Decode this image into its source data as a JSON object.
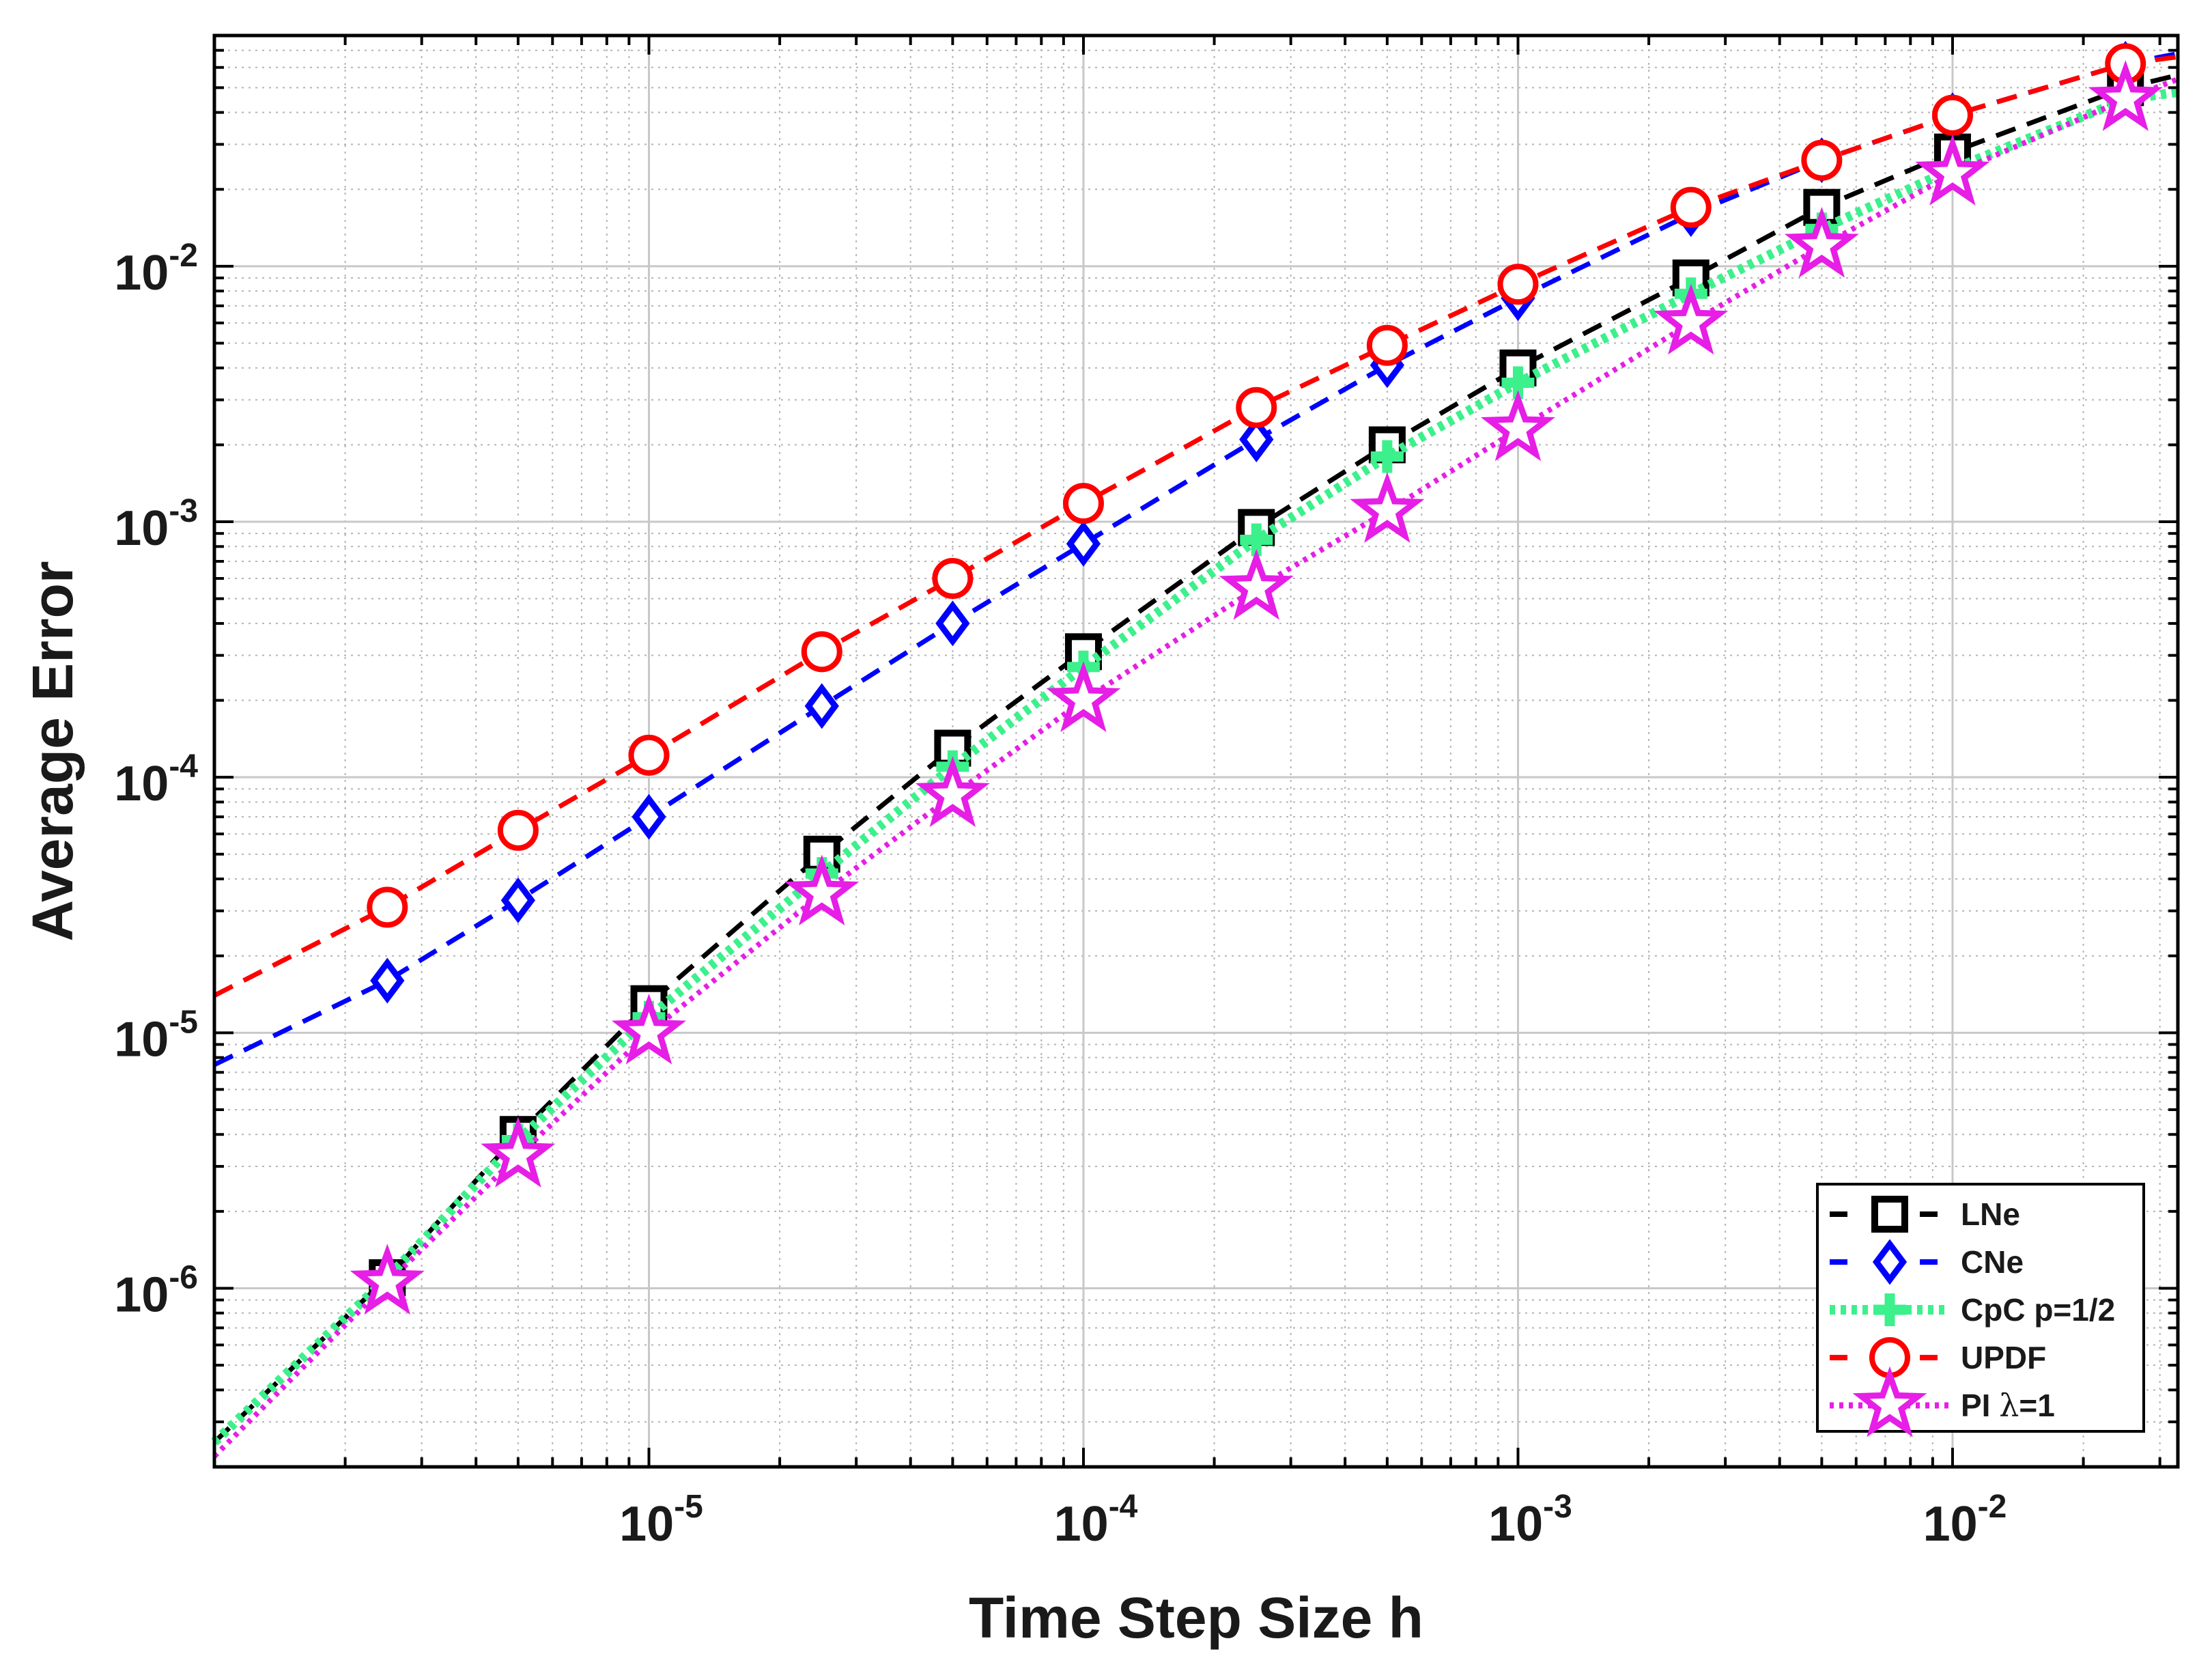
{
  "chart_data": {
    "type": "line",
    "title": "",
    "xlabel": "Time Step Size h",
    "ylabel": "Average Error",
    "xscale": "log",
    "yscale": "log",
    "xlim": [
      1e-06,
      0.033
    ],
    "ylim": [
      2e-07,
      0.08
    ],
    "grid": true,
    "minor_grid": true,
    "legend_position": "bottom-right",
    "x_ticks": [
      {
        "value": 1e-05,
        "base": "10",
        "exp": "-5"
      },
      {
        "value": 0.0001,
        "base": "10",
        "exp": "-4"
      },
      {
        "value": 0.001,
        "base": "10",
        "exp": "-3"
      },
      {
        "value": 0.01,
        "base": "10",
        "exp": "-2"
      }
    ],
    "y_ticks": [
      {
        "value": 1e-06,
        "base": "10",
        "exp": "-6"
      },
      {
        "value": 1e-05,
        "base": "10",
        "exp": "-5"
      },
      {
        "value": 0.0001,
        "base": "10",
        "exp": "-4"
      },
      {
        "value": 0.001,
        "base": "10",
        "exp": "-3"
      },
      {
        "value": 0.01,
        "base": "10",
        "exp": "-2"
      }
    ],
    "x": [
      2.5e-06,
      5e-06,
      1e-05,
      2.5e-05,
      5e-05,
      0.0001,
      0.00025,
      0.0005,
      0.001,
      0.0025,
      0.005,
      0.01,
      0.025
    ],
    "series": [
      {
        "name": "LNe",
        "color": "#000000",
        "dash": "dashed",
        "marker": "square",
        "values": [
          1.1e-06,
          4e-06,
          1.3e-05,
          5e-05,
          0.00013,
          0.00031,
          0.00095,
          0.002,
          0.004,
          0.009,
          0.017,
          0.028,
          0.05
        ],
        "line_start": 2.5e-07,
        "line_end": 0.056
      },
      {
        "name": "CNe",
        "color": "#0000ff",
        "dash": "dashed",
        "marker": "diamond",
        "values": [
          1.6e-05,
          3.3e-05,
          7e-05,
          0.00019,
          0.0004,
          0.00082,
          0.0021,
          0.0041,
          0.0075,
          0.016,
          0.026,
          0.039,
          0.062
        ],
        "line_start": 7.5e-06,
        "line_end": 0.068
      },
      {
        "name": "CpC p=1/2",
        "color": "#3cf08c",
        "dash": "dotted",
        "marker": "plus",
        "values": [
          1.1e-06,
          3.8e-06,
          1.15e-05,
          4.2e-05,
          0.00011,
          0.00027,
          0.00085,
          0.0018,
          0.0035,
          0.0078,
          0.014,
          0.024,
          0.045
        ],
        "line_start": 2.5e-07,
        "line_end": 0.048
      },
      {
        "name": "UPDF",
        "color": "#ff0000",
        "dash": "dashed",
        "marker": "circle",
        "values": [
          3.1e-05,
          6.2e-05,
          0.000122,
          0.00031,
          0.0006,
          0.00118,
          0.0028,
          0.0049,
          0.0085,
          0.017,
          0.026,
          0.039,
          0.062
        ],
        "line_start": 1.4e-05,
        "line_end": 0.066
      },
      {
        "name": "PI λ=1",
        "label_prefix": "PI ",
        "label_greek": "λ",
        "label_suffix": "=1",
        "color": "#e61ee6",
        "dash": "dotted",
        "marker": "star",
        "values": [
          1.05e-06,
          3.3e-06,
          1e-05,
          3.5e-05,
          8.5e-05,
          0.0002,
          0.00055,
          0.0011,
          0.0023,
          0.006,
          0.012,
          0.023,
          0.045
        ],
        "line_start": 2.2e-07,
        "line_end": 0.054
      }
    ]
  }
}
